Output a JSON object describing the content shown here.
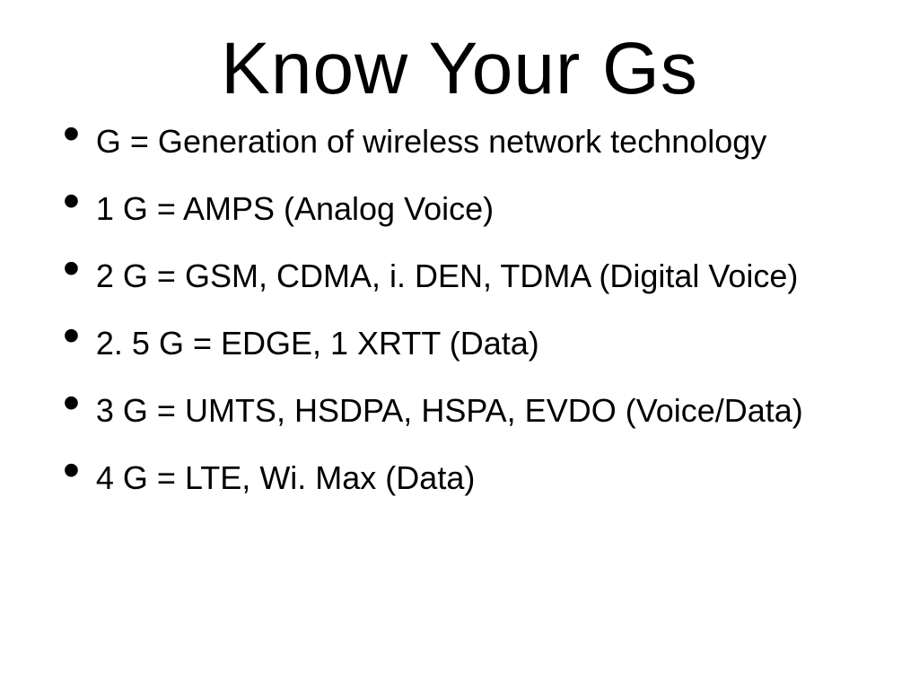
{
  "slide": {
    "title": "Know Your Gs",
    "title_fontsize": 82,
    "body_fontsize": 36,
    "bullet_fontsize": 54,
    "text_color": "#000000",
    "background_color": "#ffffff",
    "font_family": "Arial, Helvetica, sans-serif",
    "bullets": [
      "G = Generation of wireless network technology",
      "1 G = AMPS (Analog Voice)",
      "2 G = GSM, CDMA, i. DEN, TDMA (Digital Voice)",
      "2. 5 G = EDGE, 1 XRTT (Data)",
      "3 G = UMTS, HSDPA, HSPA, EVDO (Voice/Data)",
      "4 G = LTE, Wi. Max (Data)"
    ]
  }
}
